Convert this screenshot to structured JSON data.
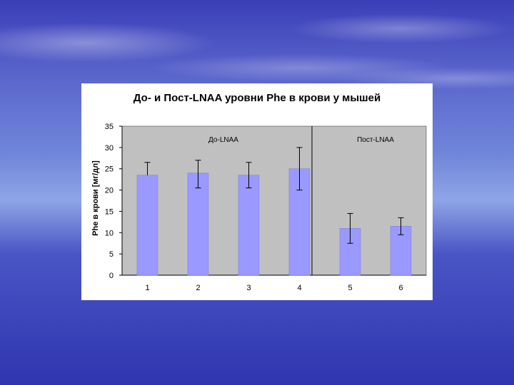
{
  "chart_data": {
    "type": "bar",
    "title": "До- и Пост-LNAA уровни Phe в крови у мышей",
    "xlabel": "",
    "ylabel": "Phe в крови [мг/дл]",
    "categories": [
      "1",
      "2",
      "3",
      "4",
      "5",
      "6"
    ],
    "values": [
      23.5,
      24,
      23.5,
      25,
      11,
      11.5
    ],
    "error_low": [
      null,
      20.5,
      20.5,
      20,
      7.5,
      9.5
    ],
    "error_high": [
      26.5,
      27,
      26.5,
      30,
      14.5,
      13.5
    ],
    "ylim": [
      0,
      35
    ],
    "yticks": [
      "0",
      "5",
      "10",
      "15",
      "20",
      "25",
      "30",
      "35"
    ],
    "grid": false,
    "bar_color": "#9999ff",
    "plot_background": "#c0c0c0",
    "regions": [
      {
        "label": "До-LNAA",
        "categories": [
          "1",
          "2",
          "3",
          "4"
        ]
      },
      {
        "label": "Пост-LNAA",
        "categories": [
          "5",
          "6"
        ]
      }
    ],
    "divider_between": [
      "4",
      "5"
    ]
  }
}
